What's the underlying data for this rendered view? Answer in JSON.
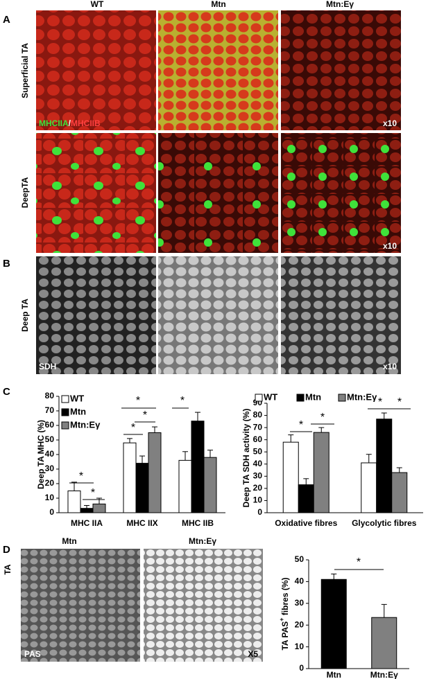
{
  "column_headers": [
    "WT",
    "Mtn",
    "Mtn:Eγ"
  ],
  "panel_a": {
    "label": "A",
    "row_labels": [
      "Superficial TA",
      "DeepTA"
    ],
    "stain_green": "MHCIIA",
    "stain_separator": "/",
    "stain_red": "MHCIIB",
    "magnification": "x10"
  },
  "panel_b": {
    "label": "B",
    "row_label": "Deep TA",
    "stain": "SDH",
    "magnification": "x10"
  },
  "panel_c": {
    "label": "C"
  },
  "panel_d": {
    "label": "D",
    "image_titles": [
      "Mtn",
      "Mtn:Eγ"
    ],
    "row_label": "TA",
    "stain": "PAS",
    "magnification": "X5"
  },
  "chart_data": [
    {
      "type": "grouped_bar",
      "y_label": "Deep TA  MHC (%)",
      "categories": [
        "MHC IIA",
        "MHC IIX",
        "MHC IIB"
      ],
      "series": [
        {
          "name": "WT",
          "color": "#ffffff",
          "values": [
            15,
            48,
            36
          ],
          "errors": [
            6,
            3,
            6
          ]
        },
        {
          "name": "Mtn",
          "color": "#000000",
          "values": [
            3,
            34,
            63
          ],
          "errors": [
            2,
            5,
            6
          ]
        },
        {
          "name": "Mtn:Eγ",
          "color": "#808080",
          "values": [
            6,
            55,
            38
          ],
          "errors": [
            4,
            4,
            5
          ]
        }
      ],
      "ylim": [
        0,
        80
      ],
      "yticks": [
        0,
        10,
        20,
        30,
        40,
        50,
        60,
        70,
        80
      ],
      "legend": "top-left",
      "annotations": [
        "*",
        "*",
        "*",
        "*",
        "*",
        "*"
      ]
    },
    {
      "type": "grouped_bar",
      "y_label": "Deep TA SDH activity (%)",
      "categories": [
        "Oxidative fibres",
        "Glycolytic fibres"
      ],
      "series": [
        {
          "name": "WT",
          "color": "#ffffff",
          "values": [
            58,
            41
          ],
          "errors": [
            6,
            7
          ]
        },
        {
          "name": "Mtn",
          "color": "#000000",
          "values": [
            23,
            77
          ],
          "errors": [
            5,
            5
          ]
        },
        {
          "name": "Mtn:Eγ",
          "color": "#808080",
          "values": [
            66,
            33
          ],
          "errors": [
            4,
            4
          ]
        }
      ],
      "ylim": [
        0,
        90
      ],
      "yticks": [
        0,
        10,
        20,
        30,
        40,
        50,
        60,
        70,
        80,
        90
      ],
      "legend": "top",
      "annotations": [
        "*",
        "*",
        "*",
        "*"
      ]
    },
    {
      "type": "bar",
      "y_label": "TA  PAS",
      "y_label_superscript": "+",
      "y_label_tail": " fibres (%)",
      "categories": [
        "Mtn",
        "Mtn:Eγ"
      ],
      "values": [
        41,
        23.5
      ],
      "errors": [
        2.5,
        6
      ],
      "colors": [
        "#000000",
        "#808080"
      ],
      "ylim": [
        0,
        50
      ],
      "yticks": [
        0,
        10,
        20,
        30,
        40,
        50
      ],
      "annotations": [
        "*"
      ]
    }
  ]
}
